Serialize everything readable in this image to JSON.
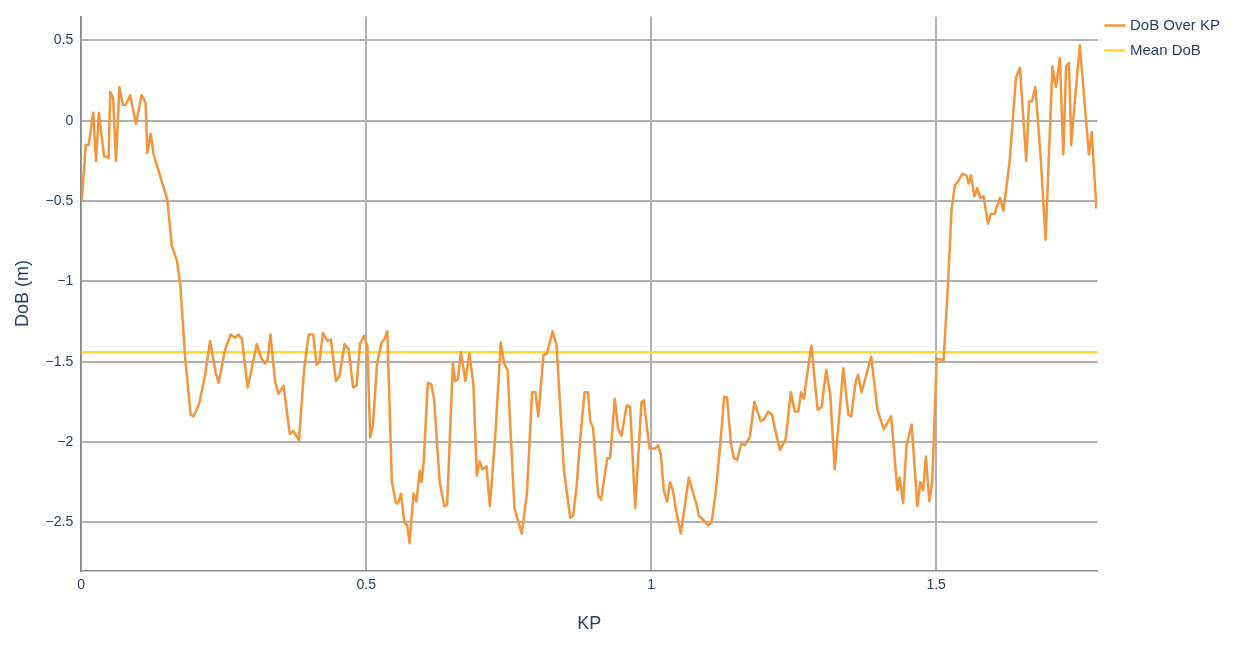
{
  "chart_data": {
    "type": "line",
    "xlabel": "KP",
    "ylabel": "DoB (m)",
    "xlim": [
      0,
      1.783
    ],
    "ylim": [
      -2.8,
      0.65
    ],
    "xticks": [
      0,
      0.5,
      1,
      1.5
    ],
    "yticks": [
      {
        "value": -2.5,
        "label": "−2.5"
      },
      {
        "value": -2,
        "label": "−2"
      },
      {
        "value": -1.5,
        "label": "−1.5"
      },
      {
        "value": -1,
        "label": "−1"
      },
      {
        "value": -0.5,
        "label": "−0.5"
      },
      0,
      0.5
    ],
    "grid": true,
    "legend": "top right",
    "marker": "none",
    "line_style": "solid",
    "series": [
      {
        "name": "DoB Over KP",
        "color": "#f4943b",
        "x": [
          0.001,
          0.008,
          0.013,
          0.021,
          0.026,
          0.031,
          0.04,
          0.048,
          0.051,
          0.056,
          0.061,
          0.067,
          0.073,
          0.078,
          0.086,
          0.096,
          0.106,
          0.113,
          0.116,
          0.122,
          0.127,
          0.151,
          0.159,
          0.168,
          0.174,
          0.182,
          0.192,
          0.197,
          0.207,
          0.217,
          0.226,
          0.236,
          0.241,
          0.252,
          0.262,
          0.27,
          0.276,
          0.282,
          0.292,
          0.301,
          0.308,
          0.315,
          0.322,
          0.327,
          0.332,
          0.34,
          0.346,
          0.355,
          0.366,
          0.372,
          0.382,
          0.391,
          0.399,
          0.407,
          0.413,
          0.418,
          0.424,
          0.432,
          0.438,
          0.447,
          0.453,
          0.462,
          0.469,
          0.477,
          0.483,
          0.489,
          0.496,
          0.502,
          0.507,
          0.512,
          0.519,
          0.527,
          0.532,
          0.537,
          0.545,
          0.552,
          0.556,
          0.561,
          0.567,
          0.572,
          0.576,
          0.583,
          0.588,
          0.594,
          0.597,
          0.601,
          0.608,
          0.614,
          0.619,
          0.629,
          0.637,
          0.642,
          0.652,
          0.656,
          0.661,
          0.666,
          0.674,
          0.681,
          0.688,
          0.694,
          0.699,
          0.704,
          0.711,
          0.717,
          0.727,
          0.736,
          0.742,
          0.748,
          0.76,
          0.773,
          0.782,
          0.791,
          0.797,
          0.802,
          0.811,
          0.817,
          0.827,
          0.834,
          0.847,
          0.858,
          0.863,
          0.869,
          0.876,
          0.883,
          0.889,
          0.893,
          0.898,
          0.907,
          0.912,
          0.923,
          0.928,
          0.936,
          0.942,
          0.948,
          0.957,
          0.963,
          0.972,
          0.983,
          0.987,
          0.997,
          1.007,
          1.012,
          1.017,
          1.022,
          1.028,
          1.033,
          1.038,
          1.045,
          1.052,
          1.066,
          1.072,
          1.079,
          1.084,
          1.093,
          1.1,
          1.106,
          1.113,
          1.121,
          1.128,
          1.133,
          1.14,
          1.145,
          1.151,
          1.158,
          1.164,
          1.173,
          1.181,
          1.192,
          1.198,
          1.205,
          1.212,
          1.22,
          1.226,
          1.236,
          1.245,
          1.252,
          1.258,
          1.263,
          1.268,
          1.274,
          1.281,
          1.292,
          1.299,
          1.307,
          1.314,
          1.322,
          1.337,
          1.346,
          1.351,
          1.359,
          1.363,
          1.369,
          1.386,
          1.397,
          1.408,
          1.421,
          1.432,
          1.436,
          1.442,
          1.448,
          1.457,
          1.467,
          1.472,
          1.477,
          1.482,
          1.488,
          1.493,
          1.501,
          1.513,
          1.52,
          1.527,
          1.533,
          1.538,
          1.546,
          1.553,
          1.557,
          1.561,
          1.567,
          1.572,
          1.577,
          1.583,
          1.591,
          1.596,
          1.602,
          1.612,
          1.618,
          1.629,
          1.64,
          1.647,
          1.658,
          1.663,
          1.668,
          1.674,
          1.683,
          1.692,
          1.704,
          1.71,
          1.717,
          1.723,
          1.728,
          1.733,
          1.737,
          1.743,
          1.752,
          1.768,
          1.773,
          1.781
        ],
        "values": [
          -0.49,
          -0.15,
          -0.15,
          0.05,
          -0.25,
          0.05,
          -0.22,
          -0.23,
          0.18,
          0.14,
          -0.25,
          0.21,
          0.1,
          0.1,
          0.16,
          -0.02,
          0.16,
          0.11,
          -0.2,
          -0.08,
          -0.21,
          -0.49,
          -0.78,
          -0.87,
          -1.03,
          -1.46,
          -1.83,
          -1.84,
          -1.76,
          -1.59,
          -1.37,
          -1.57,
          -1.63,
          -1.43,
          -1.33,
          -1.35,
          -1.33,
          -1.36,
          -1.66,
          -1.51,
          -1.39,
          -1.47,
          -1.51,
          -1.49,
          -1.33,
          -1.62,
          -1.7,
          -1.65,
          -1.95,
          -1.93,
          -1.99,
          -1.55,
          -1.33,
          -1.33,
          -1.52,
          -1.5,
          -1.32,
          -1.37,
          -1.36,
          -1.62,
          -1.59,
          -1.39,
          -1.42,
          -1.66,
          -1.65,
          -1.39,
          -1.34,
          -1.4,
          -1.97,
          -1.89,
          -1.51,
          -1.38,
          -1.36,
          -1.31,
          -2.25,
          -2.38,
          -2.38,
          -2.32,
          -2.5,
          -2.52,
          -2.63,
          -2.32,
          -2.37,
          -2.18,
          -2.25,
          -2.12,
          -1.63,
          -1.64,
          -1.73,
          -2.25,
          -2.4,
          -2.39,
          -1.51,
          -1.62,
          -1.61,
          -1.44,
          -1.62,
          -1.45,
          -1.64,
          -2.21,
          -2.12,
          -2.17,
          -2.15,
          -2.4,
          -1.93,
          -1.38,
          -1.51,
          -1.55,
          -2.41,
          -2.57,
          -2.32,
          -1.69,
          -1.69,
          -1.84,
          -1.46,
          -1.45,
          -1.31,
          -1.4,
          -2.18,
          -2.47,
          -2.46,
          -2.28,
          -1.96,
          -1.69,
          -1.69,
          -1.87,
          -1.91,
          -2.33,
          -2.36,
          -2.1,
          -2.1,
          -1.73,
          -1.92,
          -1.96,
          -1.77,
          -1.78,
          -2.41,
          -1.75,
          -1.74,
          -2.04,
          -2.04,
          -2.02,
          -2.08,
          -2.3,
          -2.37,
          -2.25,
          -2.3,
          -2.45,
          -2.57,
          -2.22,
          -2.3,
          -2.38,
          -2.46,
          -2.49,
          -2.52,
          -2.5,
          -2.32,
          -2.02,
          -1.72,
          -1.72,
          -2.01,
          -2.1,
          -2.11,
          -2.01,
          -2.02,
          -1.97,
          -1.75,
          -1.87,
          -1.86,
          -1.81,
          -1.83,
          -1.96,
          -2.05,
          -1.98,
          -1.69,
          -1.81,
          -1.81,
          -1.69,
          -1.73,
          -1.57,
          -1.4,
          -1.8,
          -1.78,
          -1.55,
          -1.7,
          -2.17,
          -1.54,
          -1.83,
          -1.84,
          -1.62,
          -1.58,
          -1.69,
          -1.47,
          -1.8,
          -1.92,
          -1.84,
          -2.3,
          -2.22,
          -2.38,
          -2.02,
          -1.89,
          -2.4,
          -2.25,
          -2.3,
          -2.09,
          -2.37,
          -2.25,
          -1.48,
          -1.49,
          -1.07,
          -0.55,
          -0.4,
          -0.38,
          -0.33,
          -0.34,
          -0.39,
          -0.34,
          -0.47,
          -0.42,
          -0.48,
          -0.47,
          -0.64,
          -0.58,
          -0.58,
          -0.48,
          -0.56,
          -0.25,
          0.27,
          0.33,
          -0.25,
          0.12,
          0.12,
          0.21,
          -0.21,
          -0.74,
          0.34,
          0.21,
          0.39,
          -0.21,
          0.34,
          0.36,
          -0.15,
          0.11,
          0.47,
          -0.21,
          -0.07,
          -0.54
        ]
      },
      {
        "name": "Mean DoB",
        "color": "#ffd92f",
        "x": [
          0,
          1.783
        ],
        "values": [
          -1.44,
          -1.44
        ]
      }
    ]
  }
}
